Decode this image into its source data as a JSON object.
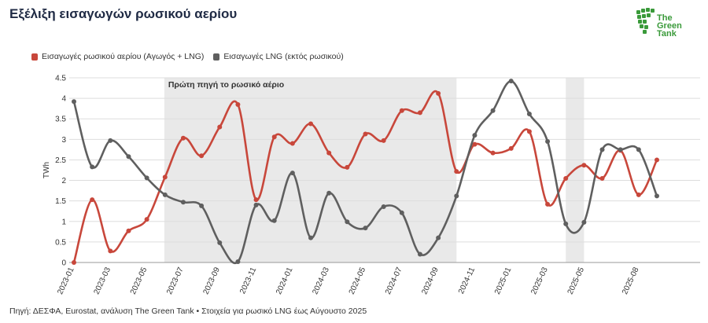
{
  "title": "Εξέλιξη εισαγωγών ρωσικού αερίου",
  "logo": {
    "line1": "The",
    "line2": "Green",
    "line3": "Tank",
    "color": "#3a9a3a"
  },
  "source": "Πηγή: ΔΕΣΦΑ, Eurostat, ανάλυση The Green Tank • Στοιχεία για ρωσικό LNG έως Αύγουστο 2025",
  "chart_data": {
    "type": "line",
    "title": "Εξέλιξη εισαγωγών ρωσικού αερίου",
    "xlabel": "",
    "ylabel": "TWh",
    "ylim": [
      0,
      4.5
    ],
    "yticks": [
      "0",
      "0.5",
      "1",
      "1.5",
      "2",
      "2.5",
      "3",
      "3.5",
      "4",
      "4.5"
    ],
    "grid": true,
    "legend_position": "top-left",
    "x": [
      "2023-01",
      "2023-02",
      "2023-03",
      "2023-04",
      "2023-05",
      "2023-06",
      "2023-07",
      "2023-08",
      "2023-09",
      "2023-10",
      "2023-11",
      "2023-12",
      "2024-01",
      "2024-02",
      "2024-03",
      "2024-04",
      "2024-05",
      "2024-06",
      "2024-07",
      "2024-08",
      "2024-09",
      "2024-10",
      "2024-11",
      "2024-12",
      "2025-01",
      "2025-02",
      "2025-03",
      "2025-04",
      "2025-05",
      "2025-06",
      "2025-07",
      "2025-08",
      "2025-09"
    ],
    "xticks": [
      "2023-01",
      "2023-03",
      "2023-05",
      "2023-07",
      "2023-09",
      "2023-11",
      "2024-01",
      "2024-03",
      "2024-05",
      "2024-07",
      "2024-09",
      "2024-11",
      "2025-01",
      "2025-03",
      "2025-05",
      "2025-08"
    ],
    "series": [
      {
        "name": "Εισαγωγές ρωσικού αερίου (Αγωγός + LNG)",
        "color": "#c8473b",
        "values": [
          0.0,
          1.53,
          0.28,
          0.77,
          1.05,
          2.08,
          3.03,
          2.6,
          3.3,
          3.85,
          1.53,
          3.06,
          2.9,
          3.38,
          2.67,
          2.32,
          3.13,
          2.97,
          3.7,
          3.65,
          4.12,
          2.22,
          2.88,
          2.67,
          2.78,
          3.19,
          1.42,
          2.05,
          2.37,
          2.05,
          2.73,
          1.65,
          2.5
        ]
      },
      {
        "name": "Εισαγωγές LNG (εκτός ρωσικού)",
        "color": "#5f5f5f",
        "values": [
          3.92,
          2.33,
          2.97,
          2.58,
          2.06,
          1.65,
          1.47,
          1.38,
          0.48,
          0.02,
          1.4,
          1.02,
          2.18,
          0.6,
          1.69,
          0.99,
          0.84,
          1.36,
          1.21,
          0.2,
          0.6,
          1.62,
          3.1,
          3.7,
          4.42,
          3.62,
          2.95,
          0.94,
          0.98,
          2.75,
          2.75,
          2.75,
          1.62
        ]
      }
    ],
    "annotations": [
      {
        "text": "Πρώτη πηγή το ρωσικό αέριο",
        "x_start": "2023-06",
        "x_end": "2024-10"
      },
      {
        "text": "",
        "x_start": "2025-04",
        "x_end": "2025-05"
      }
    ]
  }
}
